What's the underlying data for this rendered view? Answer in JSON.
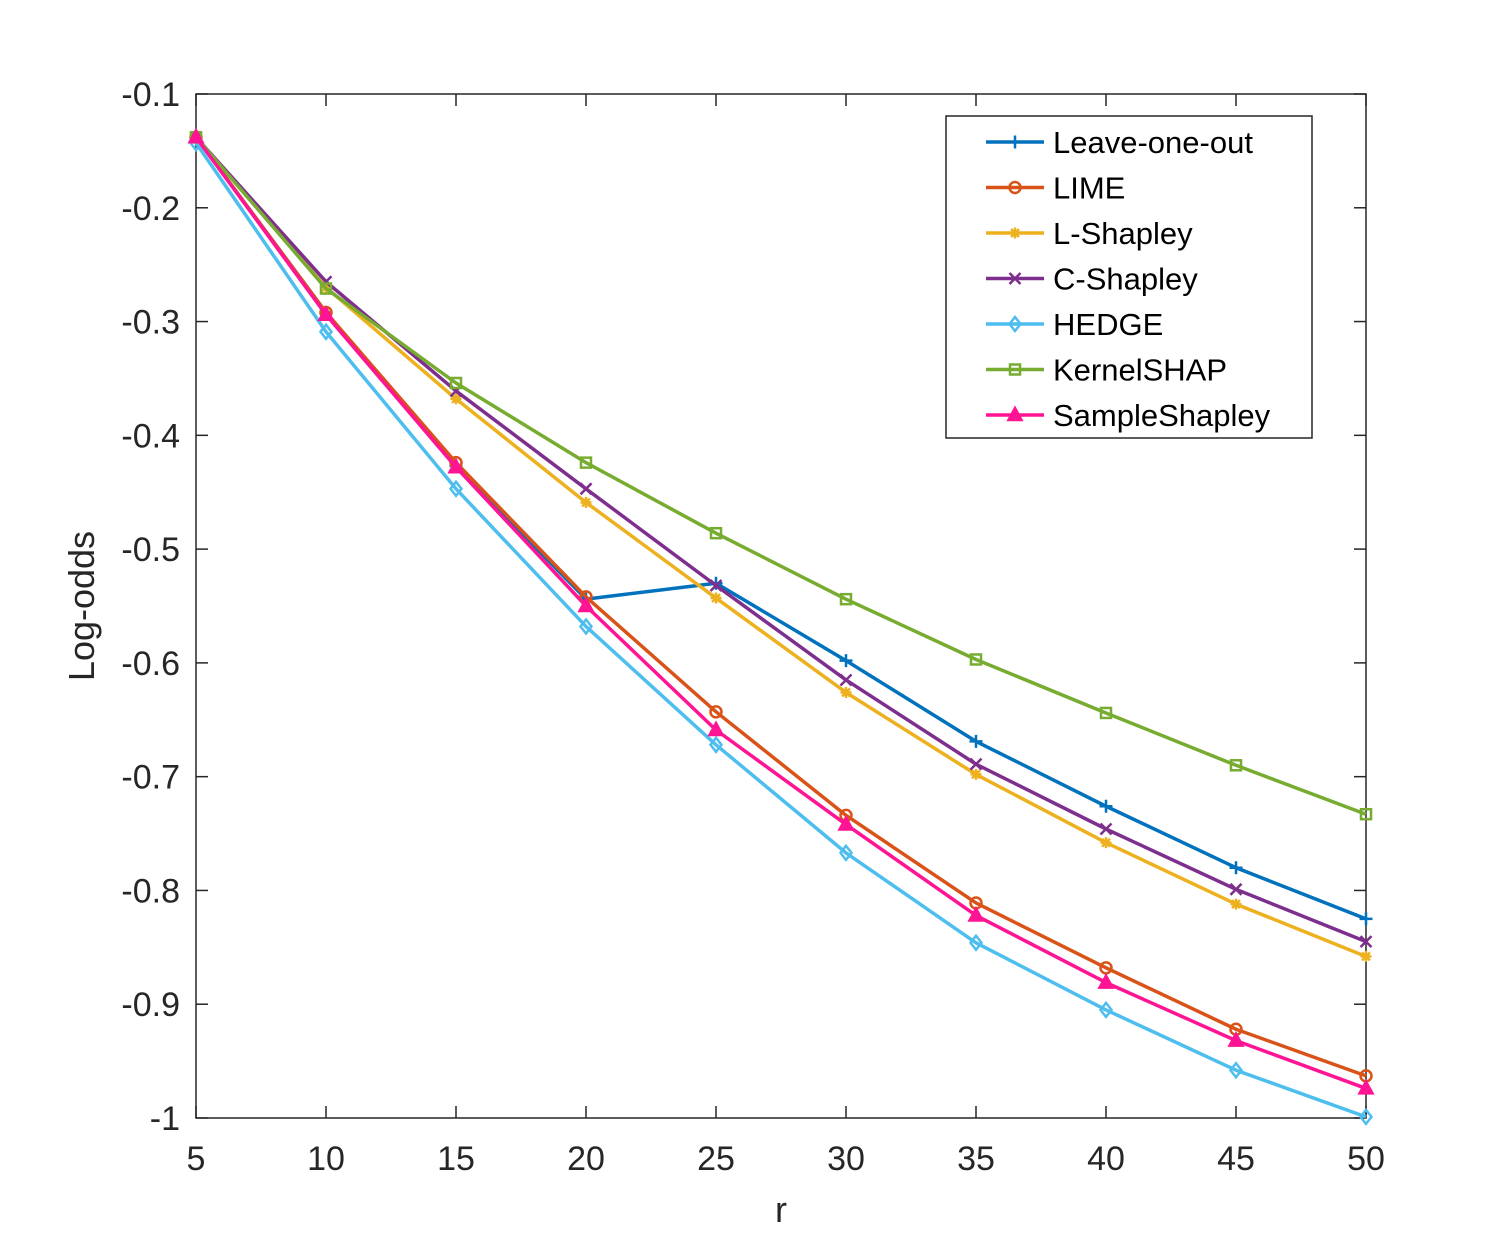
{
  "chart_data": {
    "type": "line",
    "title": "",
    "xlabel": "r",
    "ylabel": "Log-odds",
    "x": [
      5,
      10,
      15,
      20,
      25,
      30,
      35,
      40,
      45,
      50
    ],
    "xlim": [
      5,
      50
    ],
    "ylim": [
      -1,
      -0.1
    ],
    "xticks": [
      "5",
      "10",
      "15",
      "20",
      "25",
      "30",
      "35",
      "40",
      "45",
      "50"
    ],
    "yticks": [
      "-0.1",
      "-0.2",
      "-0.3",
      "-0.4",
      "-0.5",
      "-0.6",
      "-0.7",
      "-0.8",
      "-0.9",
      "-1"
    ],
    "ytick_values": [
      -0.1,
      -0.2,
      -0.3,
      -0.4,
      -0.5,
      -0.6,
      -0.7,
      -0.8,
      -0.9,
      -1.0
    ],
    "grid": false,
    "legend_position": "top-right",
    "series": [
      {
        "name": "Leave-one-out",
        "color": "#0072BD",
        "marker": "plus",
        "values": [
          -0.138,
          -0.292,
          -0.427,
          -0.544,
          -0.53,
          -0.598,
          -0.669,
          -0.726,
          -0.78,
          -0.825
        ]
      },
      {
        "name": "LIME",
        "color": "#D95319",
        "marker": "circle",
        "values": [
          -0.138,
          -0.292,
          -0.424,
          -0.542,
          -0.643,
          -0.734,
          -0.811,
          -0.868,
          -0.922,
          -0.963
        ]
      },
      {
        "name": "L-Shapley",
        "color": "#EDB120",
        "marker": "asterisk",
        "values": [
          -0.138,
          -0.27,
          -0.368,
          -0.459,
          -0.543,
          -0.626,
          -0.698,
          -0.758,
          -0.812,
          -0.858
        ]
      },
      {
        "name": "C-Shapley",
        "color": "#7E2F8E",
        "marker": "x",
        "values": [
          -0.138,
          -0.265,
          -0.361,
          -0.447,
          -0.532,
          -0.615,
          -0.689,
          -0.746,
          -0.799,
          -0.845
        ]
      },
      {
        "name": "HEDGE",
        "color": "#4DBEEE",
        "marker": "diamond",
        "values": [
          -0.143,
          -0.309,
          -0.447,
          -0.568,
          -0.672,
          -0.767,
          -0.846,
          -0.905,
          -0.958,
          -0.999
        ]
      },
      {
        "name": "KernelSHAP",
        "color": "#77AC30",
        "marker": "square",
        "values": [
          -0.138,
          -0.271,
          -0.354,
          -0.424,
          -0.486,
          -0.544,
          -0.597,
          -0.644,
          -0.69,
          -0.733
        ]
      },
      {
        "name": "SampleShapley",
        "color": "#FF1493",
        "marker": "triangle",
        "values": [
          -0.138,
          -0.294,
          -0.428,
          -0.55,
          -0.659,
          -0.742,
          -0.822,
          -0.881,
          -0.932,
          -0.974
        ]
      }
    ]
  }
}
